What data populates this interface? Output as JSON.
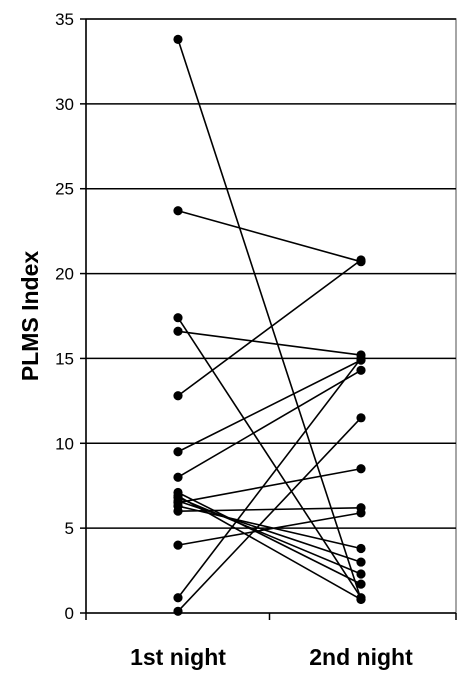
{
  "chart_data": {
    "type": "line",
    "title": "",
    "xlabel": "",
    "ylabel": "PLMS Index",
    "categories": [
      "1st night",
      "2nd night"
    ],
    "ylim": [
      0,
      35
    ],
    "yticks": [
      0,
      5,
      10,
      15,
      20,
      25,
      30,
      35
    ],
    "grid": true,
    "legend": "none",
    "pairs": [
      [
        33.8,
        0.8
      ],
      [
        23.7,
        20.7
      ],
      [
        17.4,
        0.9
      ],
      [
        16.6,
        15.2
      ],
      [
        12.8,
        20.8
      ],
      [
        9.5,
        14.9
      ],
      [
        8.0,
        14.3
      ],
      [
        7.1,
        1.7
      ],
      [
        6.9,
        0.8
      ],
      [
        6.8,
        2.3
      ],
      [
        6.6,
        3.0
      ],
      [
        6.5,
        8.5
      ],
      [
        6.3,
        3.8
      ],
      [
        6.0,
        6.2
      ],
      [
        4.0,
        5.9
      ],
      [
        0.9,
        15.0
      ],
      [
        0.1,
        11.5
      ]
    ]
  }
}
